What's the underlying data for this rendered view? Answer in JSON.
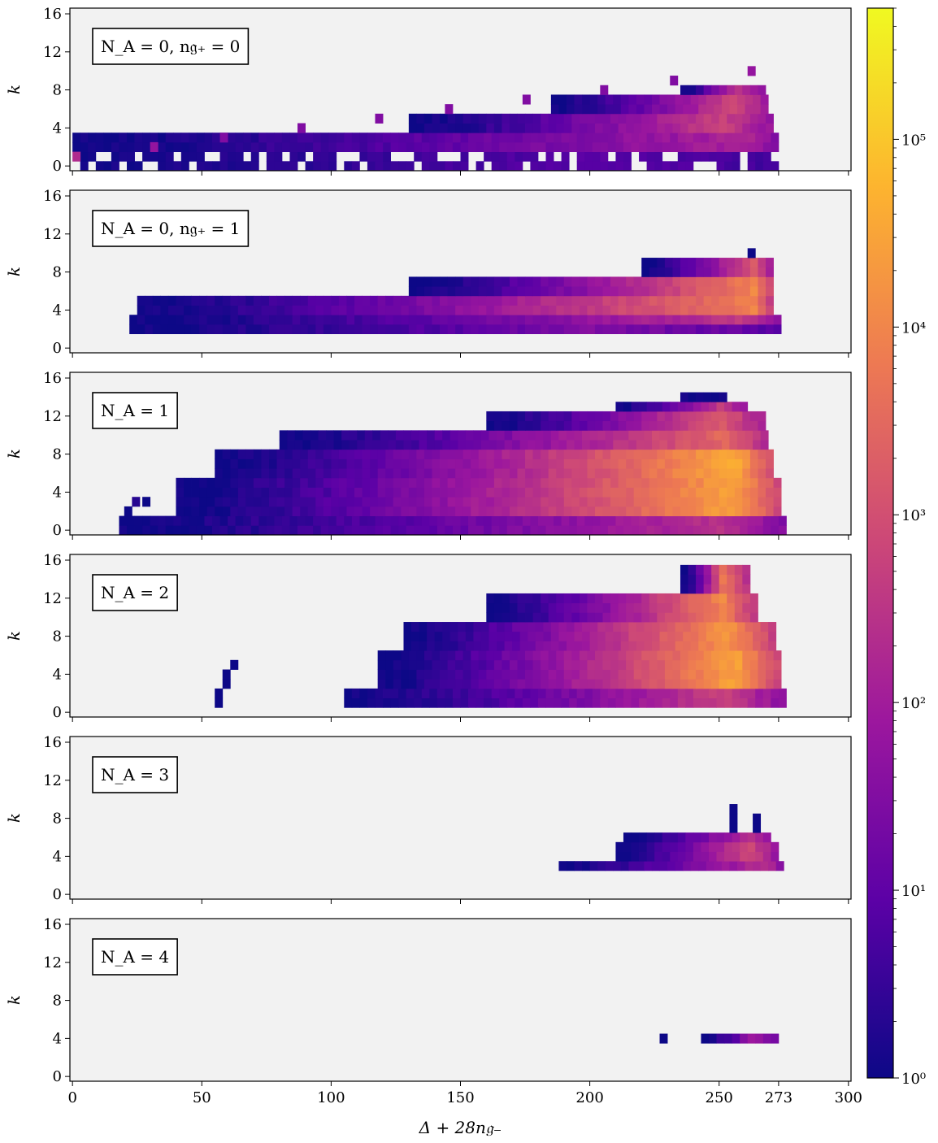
{
  "chart_data": {
    "type": "heatmap",
    "xlabel": "Δ + 28n𝔤₋",
    "ylabel": "k",
    "xlim": [
      -1,
      301
    ],
    "ylim": [
      -0.5,
      16.6
    ],
    "x_ticks": [
      0,
      50,
      100,
      150,
      200,
      250,
      273,
      300
    ],
    "y_ticks": [
      0,
      4,
      8,
      12,
      16
    ],
    "cell_width": 3,
    "cell_height": 1,
    "colorbar": {
      "scale": "log",
      "min": 1,
      "max": 500000,
      "ticks": [
        {
          "value": 1,
          "label": "10⁰"
        },
        {
          "value": 10,
          "label": "10¹"
        },
        {
          "value": 100,
          "label": "10²"
        },
        {
          "value": 1000,
          "label": "10³"
        },
        {
          "value": 10000,
          "label": "10⁴"
        },
        {
          "value": 100000,
          "label": "10⁵"
        }
      ],
      "colormap": [
        "#0d0887",
        "#5c01a6",
        "#9c179e",
        "#cc4778",
        "#ed7953",
        "#fdb42f",
        "#f0f921"
      ]
    },
    "colors": {
      "panel_background": "#f2f2f2",
      "colormap_floor": "#00104d"
    },
    "panels": [
      {
        "label": "N_A = 0, n𝔤₊ = 0",
        "regions": [
          {
            "x": [
              0,
              270
            ],
            "k": [
              0,
              1
            ],
            "peak": 8,
            "peak_x": 200,
            "sparse": true
          },
          {
            "x": [
              0,
              272
            ],
            "k": [
              2,
              3
            ],
            "peak": 150,
            "peak_x": 260
          },
          {
            "x": [
              130,
              270
            ],
            "k": [
              4,
              5
            ],
            "peak": 600,
            "peak_x": 250
          },
          {
            "x": [
              185,
              268
            ],
            "k": [
              6,
              7
            ],
            "peak": 800,
            "peak_x": 255
          },
          {
            "x": [
              235,
              265
            ],
            "k": [
              8,
              8
            ],
            "peak": 400,
            "peak_x": 255
          }
        ],
        "cells": [
          {
            "x": 0,
            "k": 1,
            "v": 200
          },
          {
            "x": 30,
            "k": 2,
            "v": 60
          },
          {
            "x": 57,
            "k": 3,
            "v": 30
          },
          {
            "x": 87,
            "k": 4,
            "v": 30
          },
          {
            "x": 117,
            "k": 5,
            "v": 30
          },
          {
            "x": 144,
            "k": 6,
            "v": 30
          },
          {
            "x": 174,
            "k": 7,
            "v": 30
          },
          {
            "x": 204,
            "k": 8,
            "v": 30
          },
          {
            "x": 231,
            "k": 9,
            "v": 30
          },
          {
            "x": 261,
            "k": 10,
            "v": 60
          }
        ]
      },
      {
        "label": "N_A = 0, n𝔤₊ = 1",
        "regions": [
          {
            "x": [
              22,
              272
            ],
            "k": [
              2,
              2
            ],
            "peak": 30,
            "peak_x": 200
          },
          {
            "x": [
              22,
              272
            ],
            "k": [
              3,
              3
            ],
            "peak": 400,
            "peak_x": 260
          },
          {
            "x": [
              25,
              270
            ],
            "k": [
              4,
              5
            ],
            "peak": 8000,
            "peak_x": 262
          },
          {
            "x": [
              130,
              270
            ],
            "k": [
              6,
              7
            ],
            "peak": 10000,
            "peak_x": 262
          },
          {
            "x": [
              220,
              268
            ],
            "k": [
              8,
              9
            ],
            "peak": 1500,
            "peak_x": 262
          }
        ],
        "cells": [
          {
            "x": 261,
            "k": 10,
            "v": 1
          }
        ]
      },
      {
        "label": "N_A = 1",
        "regions": [
          {
            "x": [
              18,
              273
            ],
            "k": [
              0,
              1
            ],
            "peak": 300,
            "peak_x": 250
          },
          {
            "x": [
              40,
              272
            ],
            "k": [
              2,
              5
            ],
            "peak": 30000,
            "peak_x": 255
          },
          {
            "x": [
              55,
              270
            ],
            "k": [
              6,
              8
            ],
            "peak": 40000,
            "peak_x": 255
          },
          {
            "x": [
              80,
              268
            ],
            "k": [
              9,
              10
            ],
            "peak": 3000,
            "peak_x": 250
          },
          {
            "x": [
              160,
              265
            ],
            "k": [
              11,
              12
            ],
            "peak": 2000,
            "peak_x": 250
          },
          {
            "x": [
              210,
              260
            ],
            "k": [
              13,
              13
            ],
            "peak": 500,
            "peak_x": 250
          },
          {
            "x": [
              235,
              250
            ],
            "k": [
              14,
              14
            ],
            "peak": 1,
            "peak_x": 245
          }
        ],
        "cells": [
          {
            "x": 20,
            "k": 2,
            "v": 1
          },
          {
            "x": 23,
            "k": 3,
            "v": 2
          },
          {
            "x": 27,
            "k": 3,
            "v": 1
          }
        ]
      },
      {
        "label": "N_A = 2",
        "regions": [
          {
            "x": [
              105,
              273
            ],
            "k": [
              1,
              2
            ],
            "peak": 500,
            "peak_x": 250
          },
          {
            "x": [
              118,
              272
            ],
            "k": [
              3,
              6
            ],
            "peak": 30000,
            "peak_x": 255
          },
          {
            "x": [
              128,
              270
            ],
            "k": [
              7,
              9
            ],
            "peak": 20000,
            "peak_x": 252
          },
          {
            "x": [
              160,
              262
            ],
            "k": [
              10,
              12
            ],
            "peak": 10000,
            "peak_x": 250
          },
          {
            "x": [
              235,
              260
            ],
            "k": [
              13,
              15
            ],
            "peak": 5000,
            "peak_x": 250
          }
        ],
        "cells": [
          {
            "x": 55,
            "k": 1,
            "v": 1
          },
          {
            "x": 55,
            "k": 2,
            "v": 1
          },
          {
            "x": 58,
            "k": 3,
            "v": 1
          },
          {
            "x": 58,
            "k": 4,
            "v": 1
          },
          {
            "x": 61,
            "k": 5,
            "v": 1
          }
        ]
      },
      {
        "label": "N_A = 3",
        "regions": [
          {
            "x": [
              188,
              272
            ],
            "k": [
              3,
              3
            ],
            "peak": 300,
            "peak_x": 268
          },
          {
            "x": [
              210,
              270
            ],
            "k": [
              4,
              5
            ],
            "peak": 800,
            "peak_x": 260
          },
          {
            "x": [
              213,
              268
            ],
            "k": [
              6,
              6
            ],
            "peak": 300,
            "peak_x": 262
          }
        ],
        "cells": [
          {
            "x": 254,
            "k": 7,
            "v": 1
          },
          {
            "x": 254,
            "k": 8,
            "v": 1
          },
          {
            "x": 254,
            "k": 9,
            "v": 1
          },
          {
            "x": 263,
            "k": 7,
            "v": 1
          },
          {
            "x": 263,
            "k": 8,
            "v": 1
          }
        ]
      },
      {
        "label": "N_A = 4",
        "regions": [
          {
            "x": [
              243,
              272
            ],
            "k": [
              4,
              4
            ],
            "peak": 80,
            "peak_x": 262
          }
        ],
        "cells": [
          {
            "x": 227,
            "k": 4,
            "v": 1
          }
        ]
      }
    ]
  }
}
